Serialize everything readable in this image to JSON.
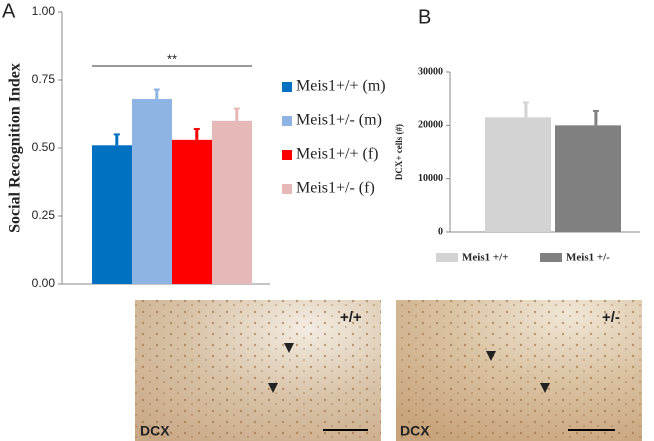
{
  "chart_data": [
    {
      "type": "bar",
      "panel": "A",
      "ylabel": "Social Recognition Index",
      "categories": [
        null
      ],
      "series": [
        {
          "name": "Meis1+/+ (m)",
          "color": "#0070c0",
          "values": [
            0.51
          ],
          "errors": [
            0.04
          ]
        },
        {
          "name": "Meis1+/- (m)",
          "color": "#8eb4e3",
          "values": [
            0.68
          ],
          "errors": [
            0.035
          ]
        },
        {
          "name": "Meis1+/+ (f)",
          "color": "#ff0000",
          "values": [
            0.53
          ],
          "errors": [
            0.04
          ]
        },
        {
          "name": "Meis1+/- (f)",
          "color": "#e6b9b8",
          "values": [
            0.6
          ],
          "errors": [
            0.045
          ]
        }
      ],
      "ylim": [
        0,
        1
      ],
      "yticks": [
        {
          "value": 0,
          "label": "0.00"
        },
        {
          "value": 0.25,
          "label": "0.25"
        },
        {
          "value": 0.5,
          "label": "0.50"
        },
        {
          "value": 0.75,
          "label": "0.75"
        },
        {
          "value": 1,
          "label": "1.00"
        }
      ],
      "annotation": "**",
      "legend": "right"
    },
    {
      "type": "bar",
      "panel": "B",
      "ylabel": "DCX+ cells (#)",
      "categories": [
        null
      ],
      "series": [
        {
          "name": "Meis1 +/+",
          "color": "#d3d3d3",
          "values": [
            21500
          ],
          "errors": [
            2800
          ]
        },
        {
          "name": "Meis1 +/-",
          "color": "#808080",
          "values": [
            20000
          ],
          "errors": [
            2700
          ]
        }
      ],
      "ylim": [
        0,
        30000
      ],
      "yticks": [
        0,
        10000,
        20000,
        30000
      ],
      "legend": "bottom"
    }
  ],
  "images": [
    {
      "genotype": "+/+",
      "stain": "DCX"
    },
    {
      "genotype": "+/-",
      "stain": "DCX"
    }
  ]
}
